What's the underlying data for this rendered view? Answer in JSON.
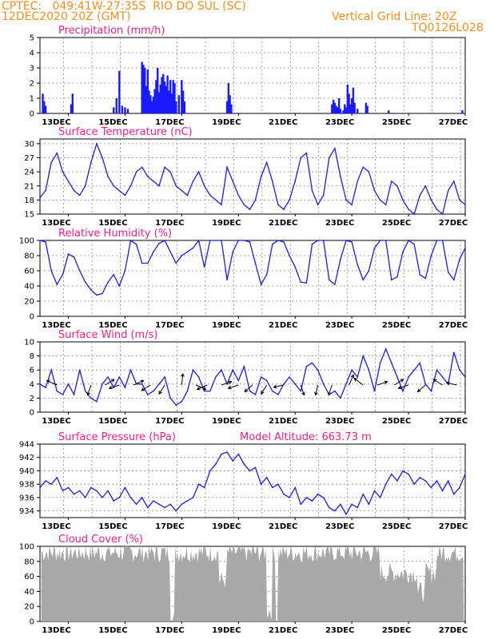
{
  "header": {
    "line1_left": "CPTEC:   049:41W-27:35S  RIO DO SUL (SC)",
    "line2_left": "12DEC2020 20Z (GMT)",
    "line1_right": "Vertical Grid Line: 20Z",
    "line2_right": "TQ0126L028"
  },
  "colors": {
    "header": "#ff8c1a",
    "title": "#ff1a8c",
    "series": "#1a1aff",
    "cloud": "#a8a8a8"
  },
  "x_ticks": [
    "13DEC",
    "15DEC",
    "17DEC",
    "19DEC",
    "21DEC",
    "23DEC",
    "25DEC",
    "27DEC"
  ],
  "model_altitude": "Model Altitude: 663.73 m",
  "chart_data": [
    {
      "type": "bar",
      "title": "Precipitation (mm/h)",
      "ylim": [
        0,
        5
      ],
      "yticks": [
        0,
        1,
        2,
        3,
        4,
        5
      ],
      "x": [
        12.1,
        12.15,
        12.2,
        13.1,
        13.15,
        14.6,
        14.7,
        14.8,
        14.9,
        15.0,
        15.1,
        15.6,
        15.65,
        15.7,
        15.75,
        15.8,
        15.85,
        15.9,
        15.95,
        16.0,
        16.05,
        16.1,
        16.15,
        16.2,
        16.25,
        16.3,
        16.35,
        16.4,
        16.45,
        16.5,
        16.55,
        16.6,
        16.65,
        16.7,
        16.75,
        16.8,
        16.9,
        17.0,
        17.05,
        17.1,
        18.6,
        18.65,
        18.7,
        18.75,
        22.3,
        22.35,
        22.4,
        22.45,
        22.5,
        22.55,
        22.6,
        22.7,
        22.75,
        22.8,
        22.85,
        22.9,
        22.95,
        23.0,
        23.05,
        23.1,
        23.2,
        23.5,
        23.55,
        24.3,
        26.9
      ],
      "values": [
        1.3,
        0.8,
        0.5,
        0.6,
        1.3,
        0.4,
        1.0,
        2.8,
        0.5,
        0.4,
        0.3,
        3.4,
        3.2,
        3.0,
        1.8,
        2.9,
        1.5,
        1.2,
        0.8,
        1.1,
        1.6,
        2.2,
        3.0,
        1.4,
        1.9,
        2.4,
        2.6,
        2.1,
        1.8,
        2.5,
        1.5,
        2.2,
        1.3,
        2.2,
        2.0,
        0.8,
        1.2,
        2.2,
        1.5,
        0.8,
        0.8,
        2.0,
        1.2,
        0.6,
        0.6,
        0.9,
        0.7,
        0.5,
        0.4,
        1.0,
        0.3,
        0.2,
        0.6,
        0.4,
        1.9,
        1.3,
        0.6,
        1.0,
        1.7,
        0.7,
        0.3,
        0.7,
        0.5,
        0.2,
        0.2
      ]
    },
    {
      "type": "line",
      "title": "Surface Temperature (nC)",
      "ylim": [
        15,
        31
      ],
      "yticks": [
        15,
        18,
        21,
        24,
        27,
        30
      ],
      "x": [
        12.0,
        12.2,
        12.4,
        12.6,
        12.8,
        13.0,
        13.2,
        13.4,
        13.6,
        13.8,
        14.0,
        14.2,
        14.4,
        14.6,
        14.8,
        15.0,
        15.2,
        15.4,
        15.6,
        15.8,
        16.0,
        16.2,
        16.4,
        16.6,
        16.8,
        17.0,
        17.2,
        17.4,
        17.6,
        17.8,
        18.0,
        18.2,
        18.4,
        18.6,
        18.8,
        19.0,
        19.2,
        19.4,
        19.6,
        19.8,
        20.0,
        20.2,
        20.4,
        20.6,
        20.8,
        21.0,
        21.2,
        21.4,
        21.6,
        21.8,
        22.0,
        22.2,
        22.4,
        22.6,
        22.8,
        23.0,
        23.2,
        23.4,
        23.6,
        23.8,
        24.0,
        24.2,
        24.4,
        24.6,
        24.8,
        25.0,
        25.2,
        25.4,
        25.6,
        25.8,
        26.0,
        26.2,
        26.4,
        26.6,
        26.8,
        27.0
      ],
      "values": [
        18.5,
        20,
        26,
        28,
        24,
        22,
        20,
        19,
        21,
        26,
        30,
        27,
        23,
        21,
        20,
        19,
        21,
        24,
        25,
        23,
        22,
        21,
        25,
        24,
        21,
        20,
        19,
        22,
        24,
        21,
        19,
        18,
        17,
        25,
        22,
        19,
        17,
        16,
        18,
        23,
        26,
        22,
        17,
        16,
        18,
        22,
        27,
        28,
        20,
        17,
        19,
        27,
        29,
        23,
        18,
        17,
        22,
        25,
        24,
        20,
        18,
        17,
        22,
        21,
        18,
        16,
        15,
        19,
        21,
        18,
        16,
        15,
        20,
        22,
        18,
        17
      ]
    },
    {
      "type": "line",
      "title": "Relative Humidity (%)",
      "ylim": [
        0,
        100
      ],
      "yticks": [
        0,
        20,
        40,
        60,
        80,
        100
      ],
      "x": [
        12.0,
        12.2,
        12.4,
        12.6,
        12.8,
        13.0,
        13.2,
        13.4,
        13.6,
        13.8,
        14.0,
        14.2,
        14.4,
        14.6,
        14.8,
        15.0,
        15.2,
        15.4,
        15.6,
        15.8,
        16.0,
        16.2,
        16.4,
        16.6,
        16.8,
        17.0,
        17.2,
        17.4,
        17.6,
        17.8,
        18.0,
        18.2,
        18.4,
        18.6,
        18.8,
        19.0,
        19.2,
        19.4,
        19.6,
        19.8,
        20.0,
        20.2,
        20.4,
        20.6,
        20.8,
        21.0,
        21.2,
        21.4,
        21.6,
        21.8,
        22.0,
        22.2,
        22.4,
        22.6,
        22.8,
        23.0,
        23.2,
        23.4,
        23.6,
        23.8,
        24.0,
        24.2,
        24.4,
        24.6,
        24.8,
        25.0,
        25.2,
        25.4,
        25.6,
        25.8,
        26.0,
        26.2,
        26.4,
        26.6,
        26.8,
        27.0
      ],
      "values": [
        100,
        98,
        60,
        42,
        55,
        82,
        78,
        60,
        45,
        35,
        28,
        30,
        45,
        55,
        40,
        60,
        100,
        95,
        70,
        70,
        85,
        96,
        100,
        85,
        70,
        80,
        85,
        90,
        100,
        65,
        100,
        100,
        100,
        48,
        85,
        100,
        100,
        98,
        70,
        42,
        55,
        95,
        100,
        98,
        80,
        65,
        45,
        44,
        95,
        100,
        100,
        48,
        42,
        75,
        100,
        98,
        68,
        48,
        60,
        90,
        100,
        100,
        48,
        52,
        85,
        100,
        95,
        55,
        50,
        80,
        100,
        100,
        58,
        48,
        75,
        90
      ]
    },
    {
      "type": "line",
      "title": "Surface Wind (m/s)",
      "ylim": [
        0,
        10
      ],
      "yticks": [
        0,
        2,
        4,
        6,
        8,
        10
      ],
      "x": [
        12.0,
        12.2,
        12.4,
        12.6,
        12.8,
        13.0,
        13.2,
        13.4,
        13.6,
        13.8,
        14.0,
        14.2,
        14.4,
        14.6,
        14.8,
        15.0,
        15.2,
        15.4,
        15.6,
        15.8,
        16.0,
        16.2,
        16.4,
        16.6,
        16.8,
        17.0,
        17.2,
        17.4,
        17.6,
        17.8,
        18.0,
        18.2,
        18.4,
        18.6,
        18.8,
        19.0,
        19.2,
        19.4,
        19.6,
        19.8,
        20.0,
        20.2,
        20.4,
        20.6,
        20.8,
        21.0,
        21.2,
        21.4,
        21.6,
        21.8,
        22.0,
        22.2,
        22.4,
        22.6,
        22.8,
        23.0,
        23.2,
        23.4,
        23.6,
        23.8,
        24.0,
        24.2,
        24.4,
        24.6,
        24.8,
        25.0,
        25.2,
        25.4,
        25.6,
        25.8,
        26.0,
        26.2,
        26.4,
        26.6,
        26.8,
        27.0
      ],
      "values": [
        4,
        3.5,
        6,
        3,
        2.5,
        4,
        2.5,
        6,
        3,
        2,
        1.5,
        4,
        5,
        3.5,
        5,
        3.5,
        6,
        4,
        4,
        2.5,
        3,
        4,
        5,
        2,
        1,
        1.5,
        3,
        6,
        5,
        3,
        3,
        5,
        6,
        4,
        6,
        4.5,
        6.5,
        3,
        2.5,
        5,
        4.5,
        3,
        2.5,
        4,
        5,
        4,
        3,
        6.5,
        7,
        6,
        4,
        2.5,
        3,
        2,
        4,
        6,
        5,
        8,
        6,
        3,
        7,
        9,
        7,
        5,
        3,
        5,
        6,
        7,
        4,
        3,
        6,
        5,
        4,
        8.5,
        6,
        5
      ]
    },
    {
      "type": "line",
      "title": "Surface Pressure (hPa)",
      "ylim": [
        933,
        944
      ],
      "yticks": [
        934,
        936,
        938,
        940,
        942,
        944
      ],
      "x": [
        12.0,
        12.2,
        12.4,
        12.6,
        12.8,
        13.0,
        13.2,
        13.4,
        13.6,
        13.8,
        14.0,
        14.2,
        14.4,
        14.6,
        14.8,
        15.0,
        15.2,
        15.4,
        15.6,
        15.8,
        16.0,
        16.2,
        16.4,
        16.6,
        16.8,
        17.0,
        17.2,
        17.4,
        17.6,
        17.8,
        18.0,
        18.2,
        18.4,
        18.6,
        18.8,
        19.0,
        19.2,
        19.4,
        19.6,
        19.8,
        20.0,
        20.2,
        20.4,
        20.6,
        20.8,
        21.0,
        21.2,
        21.4,
        21.6,
        21.8,
        22.0,
        22.2,
        22.4,
        22.6,
        22.8,
        23.0,
        23.2,
        23.4,
        23.6,
        23.8,
        24.0,
        24.2,
        24.4,
        24.6,
        24.8,
        25.0,
        25.2,
        25.4,
        25.6,
        25.8,
        26.0,
        26.2,
        26.4,
        26.6,
        26.8,
        27.0
      ],
      "values": [
        937.5,
        938.5,
        938,
        939,
        937,
        937.5,
        936.5,
        937,
        936,
        937.5,
        937,
        936,
        937,
        935.5,
        936,
        937.5,
        936,
        935,
        936,
        934.5,
        935.5,
        935,
        934.5,
        935,
        934,
        935,
        935.5,
        936,
        938,
        937.5,
        940,
        941,
        942.5,
        942.8,
        941.5,
        942.5,
        941,
        940,
        940.5,
        938,
        939,
        937.5,
        938,
        936.5,
        936,
        937.5,
        935,
        936,
        935.5,
        936.5,
        936,
        934.5,
        934,
        935,
        933.5,
        935,
        934.5,
        936.5,
        935,
        937,
        936,
        938,
        939.5,
        938.5,
        940,
        939.5,
        938,
        939,
        938.5,
        937.5,
        938.5,
        937,
        938.5,
        936.5,
        937.5,
        939.5
      ]
    },
    {
      "type": "bar",
      "title": "Cloud Cover (%)",
      "ylim": [
        0,
        100
      ],
      "yticks": [
        0,
        20,
        40,
        60,
        80,
        100
      ]
    }
  ]
}
